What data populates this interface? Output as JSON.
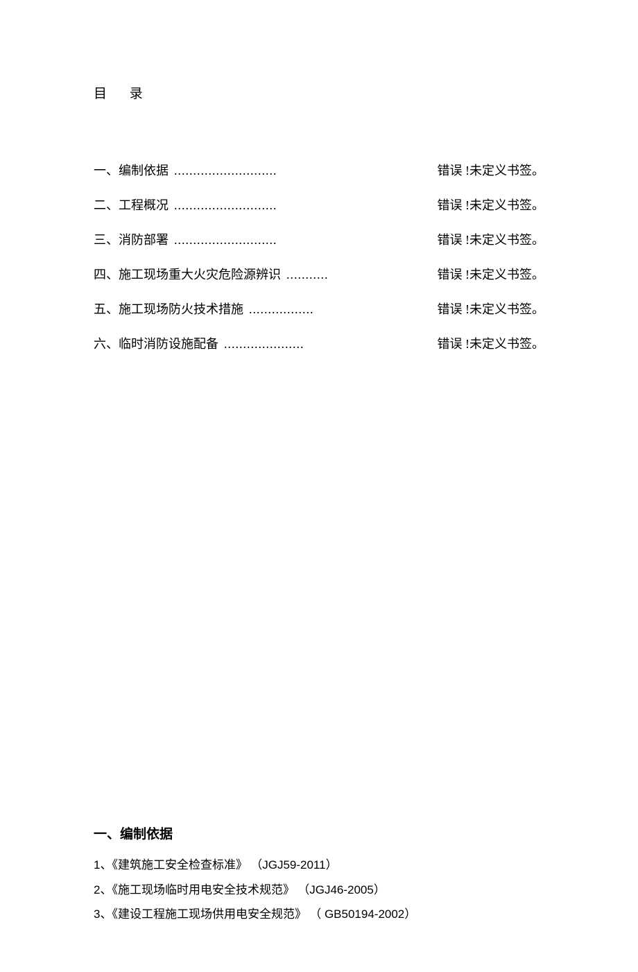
{
  "title": "目 录",
  "toc": {
    "items": [
      {
        "label": "一、编制依据",
        "dots": "...........................",
        "page": "错误 !未定义书签。"
      },
      {
        "label": "二、工程概况",
        "dots": "...........................",
        "page": "错误 !未定义书签。"
      },
      {
        "label": "三、消防部署",
        "dots": "...........................",
        "page": "错误 !未定义书签。"
      },
      {
        "label": "四、施工现场重大火灾危险源辨识",
        "dots": "   ...........",
        "page": "错误 !未定义书签。"
      },
      {
        "label": "五、施工现场防火技术措施",
        "dots": "  .................",
        "page": "错误 !未定义书签。"
      },
      {
        "label": "六、临时消防设施配备",
        "dots": "  .....................",
        "page": "错误 !未定义书签。"
      }
    ]
  },
  "section1": {
    "heading": "一、编制依据",
    "refs": [
      {
        "num": "1",
        "title": "、《建筑施工安全检查标准》 （",
        "code": "JGJ59-2011",
        "suffix": "）"
      },
      {
        "num": "2",
        "title": "、《施工现场临时用电安全技术规范》 （",
        "code": "JGJ46-2005",
        "suffix": "）"
      },
      {
        "num": "3",
        "title": "、《建设工程施工现场供用电安全规范》 （",
        "code": " GB50194-2002",
        "suffix": "）"
      }
    ]
  }
}
